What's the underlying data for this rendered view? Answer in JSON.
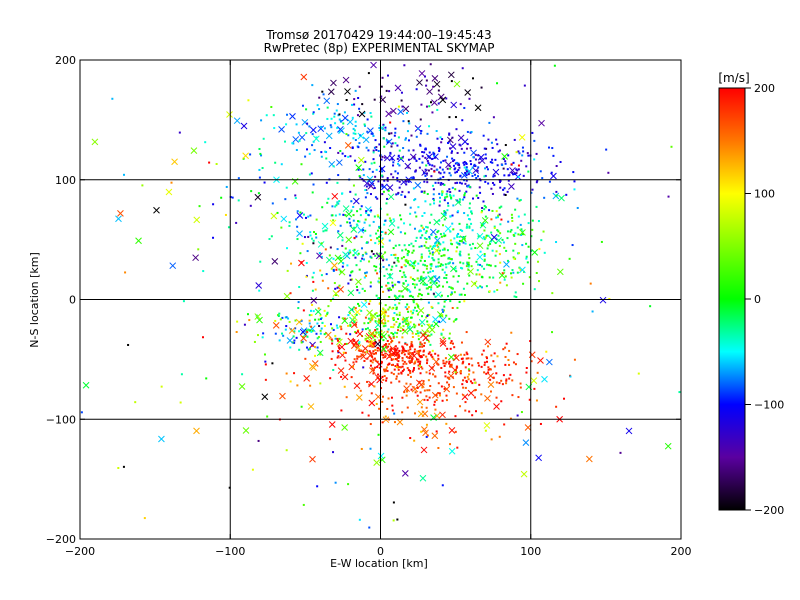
{
  "chart_data": {
    "type": "scatter",
    "title": "Tromsø 20170429 19:44:00–19:45:43",
    "subtitle": "RwPretec (8p) EXPERIMENTAL SKYMAP",
    "xlabel": "E-W location [km]",
    "ylabel": "N-S location [km]",
    "xlim": [
      -200,
      200
    ],
    "ylim": [
      -200,
      200
    ],
    "xticks": [
      -200,
      -100,
      0,
      100,
      200
    ],
    "yticks": [
      -200,
      -100,
      0,
      100,
      200
    ],
    "xtick_labels": [
      "−200",
      "−100",
      "0",
      "100",
      "200"
    ],
    "ytick_labels": [
      "−200",
      "−100",
      "0",
      "100",
      "200"
    ],
    "grid": true,
    "colorbar": {
      "label": "[m/s]",
      "range": [
        -200,
        200
      ],
      "ticks": [
        200,
        100,
        0,
        -100,
        -200
      ],
      "tick_labels": [
        "200",
        "100",
        "0",
        "−100",
        "−200"
      ],
      "colormap": "rainbow (black at −200, purple, blue at −100, cyan, green at 0, yellow at 100, red at 200)"
    },
    "marker_types": [
      "point",
      "cross"
    ],
    "clusters": [
      {
        "x": 45,
        "y": 110,
        "sx": 35,
        "sy": 15,
        "n": 420,
        "v": -110,
        "vs": 20,
        "cross": 0.08
      },
      {
        "x": -15,
        "y": 140,
        "sx": 30,
        "sy": 12,
        "n": 130,
        "v": -65,
        "vs": 25,
        "cross": 0.15
      },
      {
        "x": 20,
        "y": 170,
        "sx": 25,
        "sy": 15,
        "n": 70,
        "v": -165,
        "vs": 30,
        "cross": 0.35
      },
      {
        "x": 50,
        "y": 55,
        "sx": 28,
        "sy": 22,
        "n": 320,
        "v": -30,
        "vs": 25,
        "cross": 0.06
      },
      {
        "x": -20,
        "y": 60,
        "sx": 22,
        "sy": 20,
        "n": 130,
        "v": -40,
        "vs": 30,
        "cross": 0.1
      },
      {
        "x": 30,
        "y": 20,
        "sx": 18,
        "sy": 18,
        "n": 220,
        "v": 0,
        "vs": 30,
        "cross": 0.05
      },
      {
        "x": -20,
        "y": 20,
        "sx": 25,
        "sy": 20,
        "n": 110,
        "v": 0,
        "vs": 90,
        "cross": 0.2
      },
      {
        "x": 10,
        "y": -20,
        "sx": 18,
        "sy": 10,
        "n": 200,
        "v": 40,
        "vs": 50,
        "cross": 0.1
      },
      {
        "x": -50,
        "y": -25,
        "sx": 15,
        "sy": 10,
        "n": 100,
        "v": -30,
        "vs": 60,
        "cross": 0.15
      },
      {
        "x": 5,
        "y": -45,
        "sx": 18,
        "sy": 8,
        "n": 240,
        "v": 185,
        "vs": 15,
        "cross": 0.1
      },
      {
        "x": 45,
        "y": -60,
        "sx": 28,
        "sy": 12,
        "n": 260,
        "v": 180,
        "vs": 20,
        "cross": 0.08
      },
      {
        "x": -30,
        "y": -40,
        "sx": 25,
        "sy": 20,
        "n": 60,
        "v": 150,
        "vs": 40,
        "cross": 0.3
      },
      {
        "x": 30,
        "y": -95,
        "sx": 35,
        "sy": 15,
        "n": 90,
        "v": 170,
        "vs": 30,
        "cross": 0.2
      },
      {
        "x": 80,
        "y": 40,
        "sx": 20,
        "sy": 25,
        "n": 80,
        "v": 30,
        "vs": 40,
        "cross": 0.1
      },
      {
        "x": -60,
        "y": 100,
        "sx": 25,
        "sy": 25,
        "n": 50,
        "v": -40,
        "vs": 50,
        "cross": 0.2
      },
      {
        "x": 0,
        "y": 0,
        "sx": 110,
        "sy": 110,
        "n": 260,
        "v": 0,
        "vs": 130,
        "cross": 0.3
      }
    ],
    "clusters_note_values_in_km_and_m_per_s": true
  }
}
